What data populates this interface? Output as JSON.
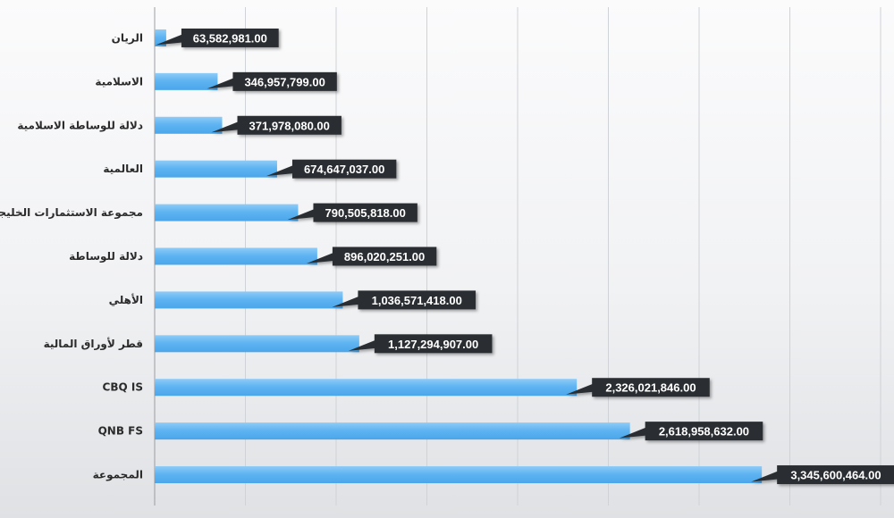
{
  "chart_data": {
    "type": "bar",
    "orientation": "horizontal",
    "categories": [
      "الريان",
      "الاسلامية",
      "دلالة للوساطة الاسلامية",
      "العالمية",
      "مجموعة الاستثمارات الخليجية",
      "دلالة للوساطة",
      "الأهلي",
      "قطر لأوراق المالية",
      "CBQ IS",
      "QNB FS",
      "المجموعة"
    ],
    "values": [
      63582981.0,
      346957799.0,
      371978080.0,
      674647037.0,
      790505818.0,
      896020251.0,
      1036571418.0,
      1127294907.0,
      2326021846.0,
      2618958632.0,
      3345600464.0
    ],
    "value_labels": [
      "63,582,981.00",
      "346,957,799.00",
      "371,978,080.00",
      "674,647,037.00",
      "790,505,818.00",
      "896,020,251.00",
      "1,036,571,418.00",
      "1,127,294,907.00",
      "2,326,021,846.00",
      "2,618,958,632.00",
      "3,345,600,464.00"
    ],
    "xlim": [
      0,
      4000000000
    ],
    "grid": true,
    "gridlines": 8,
    "legend": "none",
    "colors": {
      "bar": "#5fb4f2",
      "bar_highlight": "#8fcbf7",
      "label_bg": "#2b2f33",
      "grid": "#cfd2d6"
    }
  }
}
